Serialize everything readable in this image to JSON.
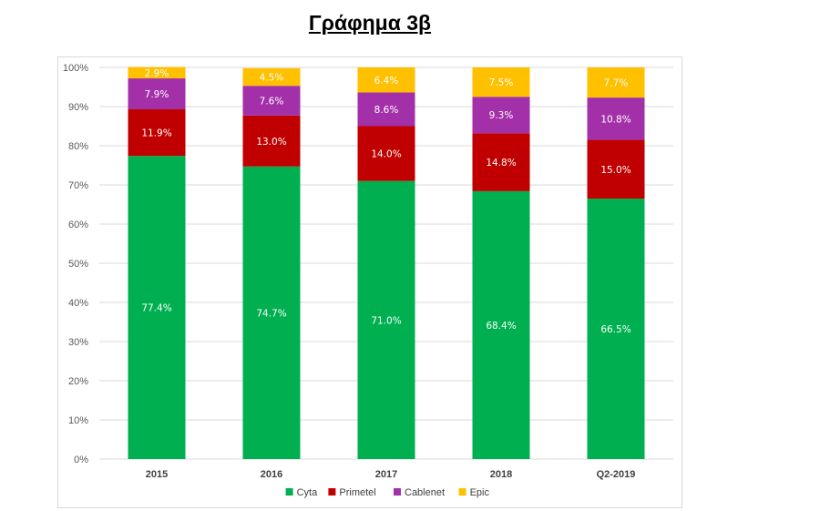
{
  "page": {
    "title": "Γράφημα 3β"
  },
  "chart_data": {
    "type": "bar",
    "stacked": true,
    "title": "",
    "xlabel": "",
    "ylabel": "",
    "ylim": [
      0,
      100
    ],
    "y_ticks": [
      "0%",
      "10%",
      "20%",
      "30%",
      "40%",
      "50%",
      "60%",
      "70%",
      "80%",
      "90%",
      "100%"
    ],
    "grid": true,
    "legend_position": "bottom",
    "categories": [
      "2015",
      "2016",
      "2017",
      "2018",
      "Q2-2019"
    ],
    "series": [
      {
        "name": "Cyta",
        "color": "#00b050",
        "values": [
          77.4,
          74.7,
          71.0,
          68.4,
          66.5
        ],
        "labels": [
          "77.4%",
          "74.7%",
          "71.0%",
          "68.4%",
          "66.5%"
        ]
      },
      {
        "name": "Primetel",
        "color": "#c00000",
        "values": [
          11.9,
          13.0,
          14.0,
          14.8,
          15.0
        ],
        "labels": [
          "11.9%",
          "13.0%",
          "14.0%",
          "14.8%",
          "15.0%"
        ]
      },
      {
        "name": "Cablenet",
        "color": "#a330a8",
        "values": [
          7.9,
          7.6,
          8.6,
          9.3,
          10.8
        ],
        "labels": [
          "7.9%",
          "7.6%",
          "8.6%",
          "9.3%",
          "10.8%"
        ]
      },
      {
        "name": "Epic",
        "color": "#ffc000",
        "values": [
          2.9,
          4.5,
          6.4,
          7.5,
          7.7
        ],
        "labels": [
          "2.9%",
          "4.5%",
          "6.4%",
          "7.5%",
          "7.7%"
        ]
      }
    ]
  }
}
